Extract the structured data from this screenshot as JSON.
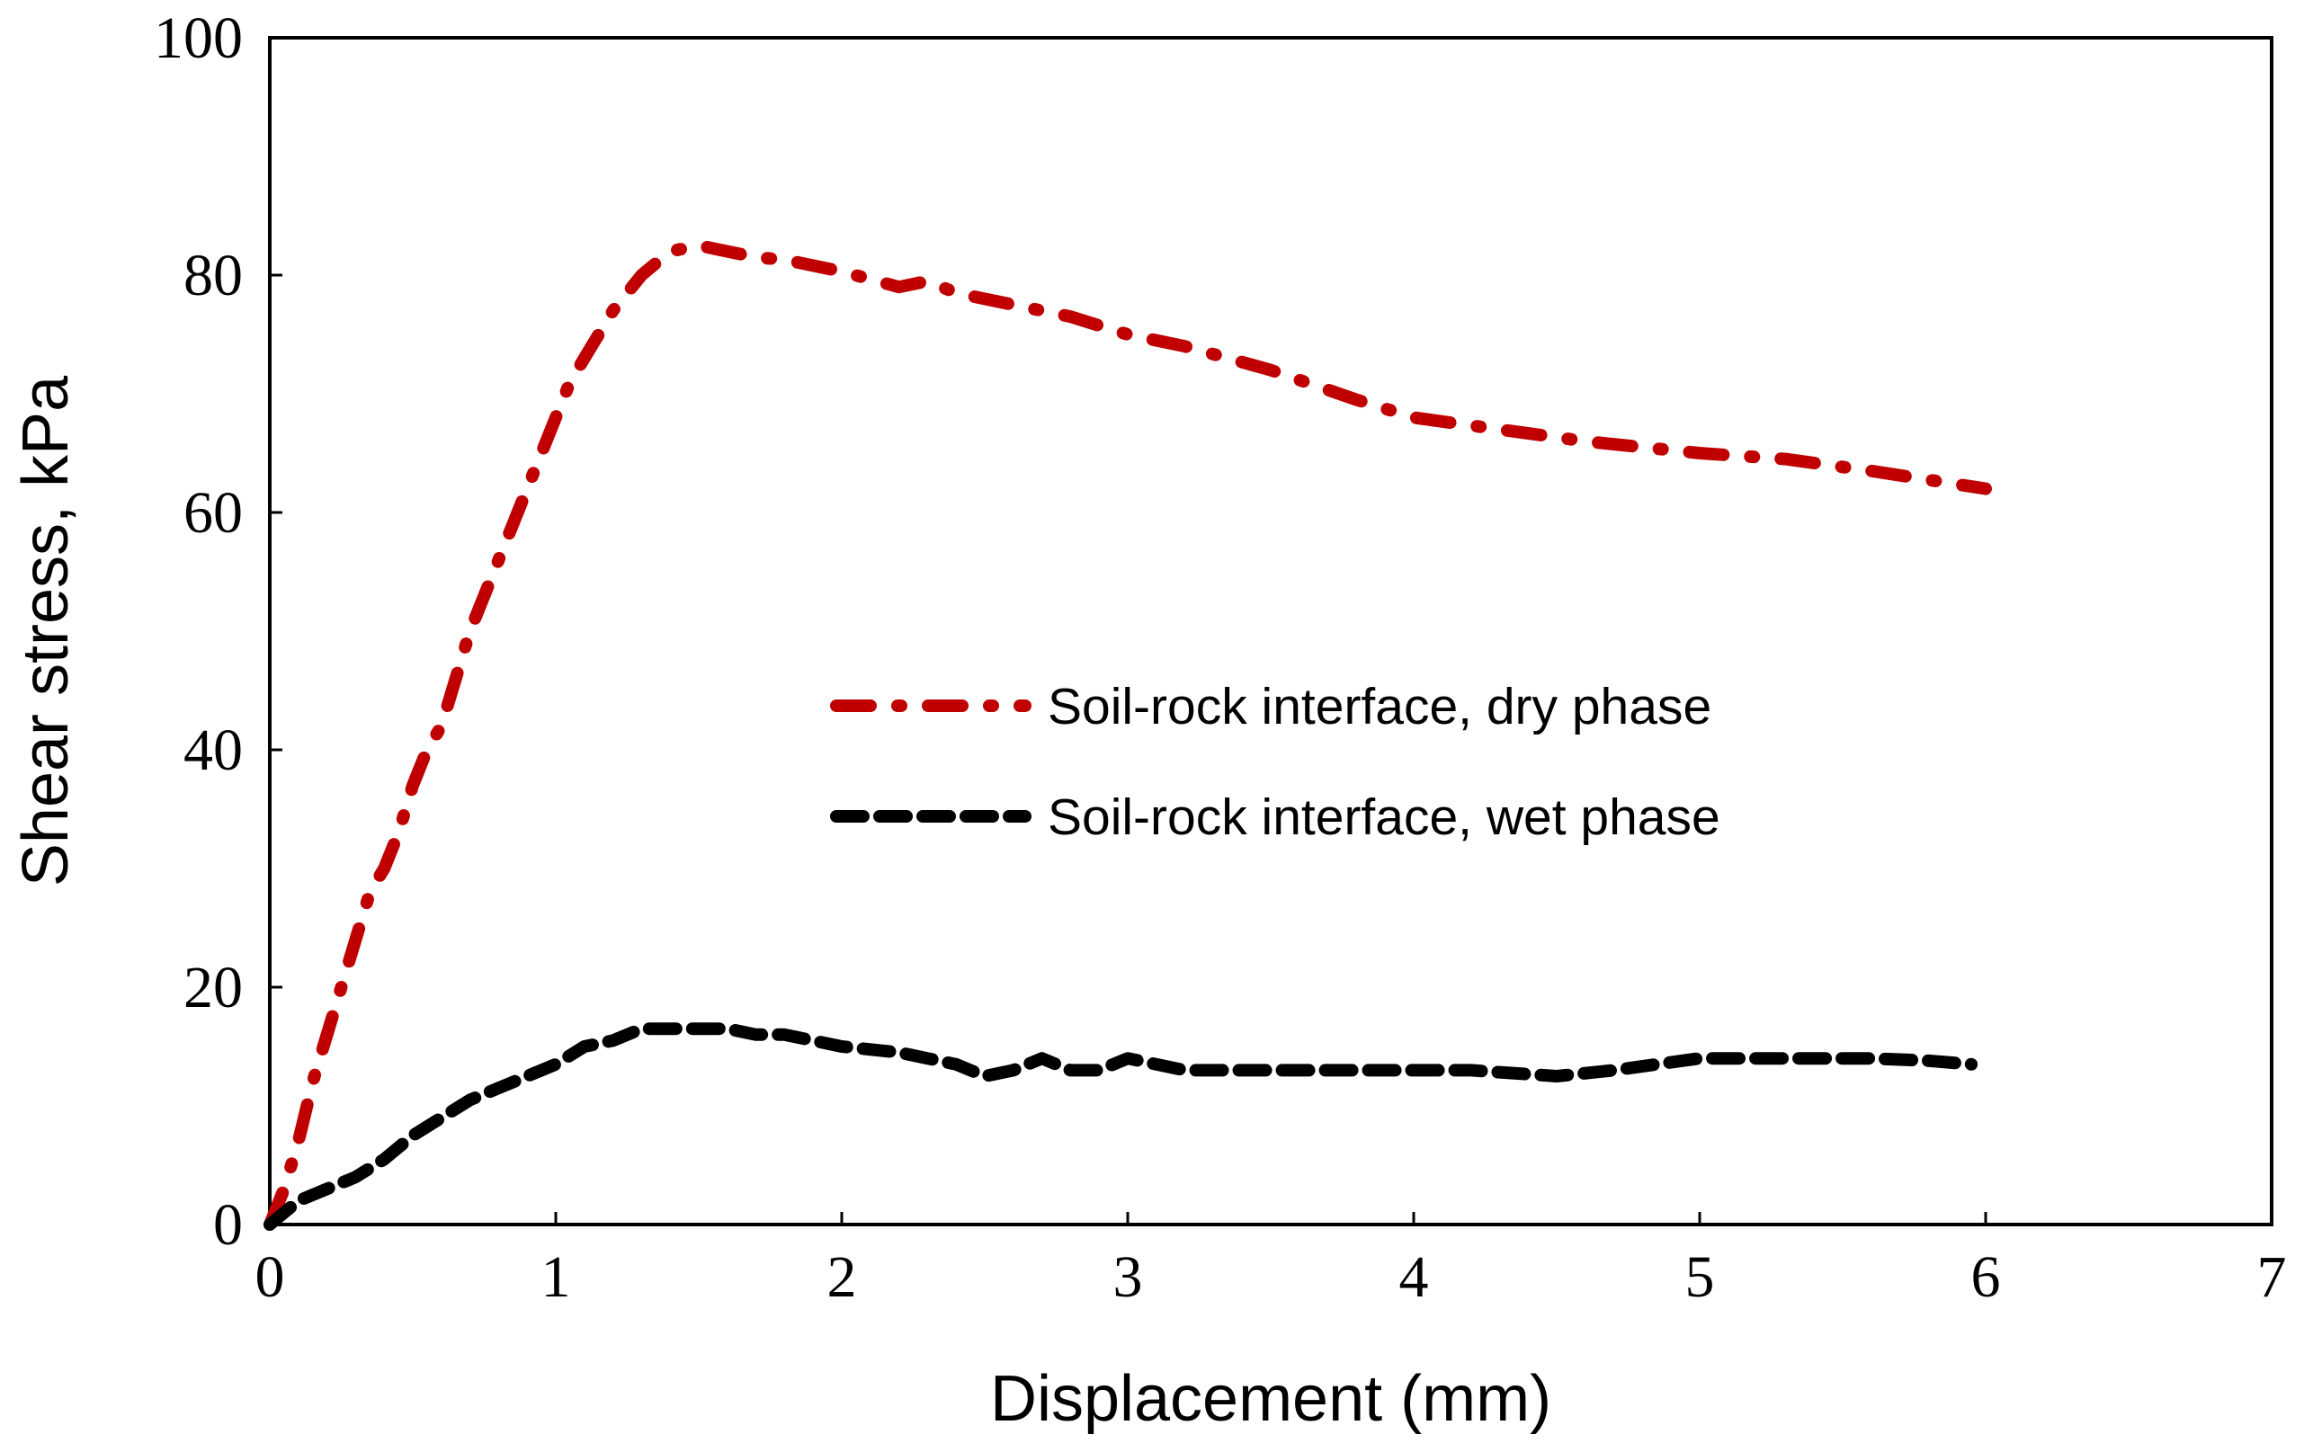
{
  "chart_data": {
    "type": "line",
    "title": "",
    "xlabel": "Displacement (mm)",
    "ylabel": "Shear stress, kPa",
    "xlim": [
      0,
      7
    ],
    "ylim": [
      0,
      100
    ],
    "xticks": [
      0,
      1,
      2,
      3,
      4,
      5,
      6,
      7
    ],
    "yticks": [
      0,
      20,
      40,
      60,
      80,
      100
    ],
    "grid": false,
    "legend_position": "center-right",
    "series": [
      {
        "name": "Soil-rock interface, dry phase",
        "color": "#c00000",
        "style": "dash-dot",
        "x": [
          0,
          0.05,
          0.1,
          0.15,
          0.2,
          0.25,
          0.3,
          0.35,
          0.4,
          0.45,
          0.5,
          0.55,
          0.6,
          0.65,
          0.7,
          0.75,
          0.8,
          0.85,
          0.9,
          0.95,
          1.0,
          1.05,
          1.1,
          1.2,
          1.3,
          1.4,
          1.5,
          1.6,
          1.7,
          1.8,
          2.0,
          2.2,
          2.3,
          2.4,
          2.6,
          2.8,
          3.0,
          3.2,
          3.5,
          3.8,
          4.0,
          4.3,
          4.6,
          5.0,
          5.3,
          5.6,
          6.0
        ],
        "y": [
          0,
          3,
          7,
          12,
          16,
          20,
          24,
          28,
          30,
          33,
          37,
          40,
          42,
          46,
          50,
          53,
          56,
          59,
          62,
          65,
          68,
          71,
          73,
          77,
          80,
          82,
          82.5,
          82,
          81.5,
          81.3,
          80.3,
          79,
          79.5,
          78.5,
          77.5,
          76.5,
          75,
          74,
          72,
          69.5,
          68,
          67,
          66,
          65,
          64.5,
          63.5,
          62
        ]
      },
      {
        "name": "Soil-rock interface, wet phase",
        "color": "#000000",
        "style": "dash",
        "x": [
          0,
          0.05,
          0.1,
          0.2,
          0.3,
          0.4,
          0.5,
          0.6,
          0.7,
          0.8,
          0.9,
          1.0,
          1.1,
          1.2,
          1.3,
          1.4,
          1.5,
          1.6,
          1.7,
          1.8,
          1.9,
          2.0,
          2.2,
          2.4,
          2.5,
          2.6,
          2.7,
          2.8,
          2.9,
          3.0,
          3.2,
          3.5,
          3.8,
          4.0,
          4.2,
          4.5,
          4.7,
          5.0,
          5.2,
          5.4,
          5.6,
          5.8,
          5.95
        ],
        "y": [
          0,
          1,
          2,
          3,
          4,
          5.5,
          7.5,
          9,
          10.5,
          11.5,
          12.5,
          13.5,
          15,
          15.5,
          16.5,
          16.5,
          16.5,
          16.5,
          16,
          16,
          15.5,
          15,
          14.5,
          13.5,
          12.5,
          13,
          14,
          13,
          13,
          14,
          13,
          13,
          13,
          13,
          13,
          12.5,
          13,
          14,
          14,
          14,
          14,
          13.8,
          13.5
        ]
      }
    ]
  }
}
